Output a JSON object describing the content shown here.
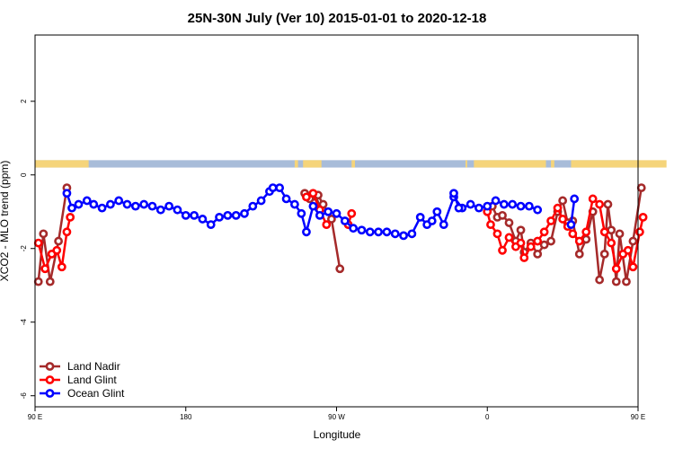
{
  "chart_data": {
    "type": "line",
    "title": "25N-30N July (Ver 10)   2015-01-01 to 2020-12-18",
    "xlabel": "Longitude",
    "ylabel": "XCO2 - MLO trend (ppm)",
    "xlim": [
      90,
      450
    ],
    "ylim": [
      -6.3,
      3.8
    ],
    "x_ticks": [
      {
        "value": 90,
        "label": "90 E"
      },
      {
        "value": 180,
        "label": "180"
      },
      {
        "value": 270,
        "label": "90 W"
      },
      {
        "value": 360,
        "label": "0"
      },
      {
        "value": 450,
        "label": "90 E"
      },
      {
        "value": 540,
        "label": "180"
      }
    ],
    "y_ticks": [
      {
        "value": 2,
        "label": "2"
      },
      {
        "value": 0,
        "label": "0"
      },
      {
        "value": -2,
        "label": "-2"
      },
      {
        "value": -4,
        "label": "-4"
      },
      {
        "value": -6,
        "label": "-6"
      }
    ],
    "land_ocean_strip": {
      "y_range": [
        0.2,
        0.4
      ],
      "land_color": "#f5d47a",
      "ocean_color": "#a8bcd9",
      "land_spans": [
        [
          90,
          122
        ],
        [
          245,
          247
        ],
        [
          250,
          261
        ],
        [
          279,
          281
        ],
        [
          347,
          348
        ],
        [
          352,
          395
        ],
        [
          398,
          400
        ],
        [
          410,
          467
        ]
      ]
    },
    "legend": {
      "position": "bottom-left"
    },
    "series": [
      {
        "name": "Land Nadir",
        "color": "#a52a2a",
        "segments": [
          [
            [
              92,
              -2.9
            ],
            [
              95,
              -1.6
            ],
            [
              99,
              -2.9
            ],
            [
              104,
              -1.8
            ],
            [
              109,
              -0.35
            ]
          ],
          [
            [
              251,
              -0.5
            ],
            [
              254,
              -0.65
            ],
            [
              257,
              -0.75
            ],
            [
              259,
              -0.55
            ],
            [
              262,
              -0.8
            ],
            [
              267,
              -1.2
            ],
            [
              272,
              -2.55
            ]
          ],
          [
            [
              363,
              -0.85
            ],
            [
              366,
              -1.15
            ],
            [
              369,
              -1.1
            ],
            [
              373,
              -1.3
            ],
            [
              377,
              -1.8
            ],
            [
              380,
              -1.5
            ],
            [
              382,
              -2.1
            ],
            [
              386,
              -1.85
            ],
            [
              390,
              -2.15
            ],
            [
              394,
              -1.9
            ],
            [
              398,
              -1.8
            ],
            [
              402,
              -1.0
            ],
            [
              405,
              -0.7
            ],
            [
              408,
              -1.3
            ],
            [
              411,
              -1.25
            ],
            [
              415,
              -2.15
            ],
            [
              419,
              -1.75
            ],
            [
              423,
              -1.0
            ],
            [
              427,
              -2.85
            ],
            [
              430,
              -2.15
            ],
            [
              432,
              -0.8
            ],
            [
              434,
              -1.5
            ],
            [
              437,
              -2.9
            ],
            [
              439,
              -1.6
            ],
            [
              443,
              -2.9
            ],
            [
              447,
              -1.8
            ],
            [
              452,
              -0.35
            ]
          ]
        ]
      },
      {
        "name": "Land Glint",
        "color": "#ff0000",
        "segments": [
          [
            [
              92,
              -1.85
            ],
            [
              96,
              -2.55
            ],
            [
              100,
              -2.15
            ],
            [
              103,
              -2.05
            ],
            [
              106,
              -2.5
            ],
            [
              109,
              -1.55
            ],
            [
              111,
              -1.15
            ]
          ],
          [
            [
              252,
              -0.6
            ],
            [
              256,
              -0.5
            ],
            [
              260,
              -0.95
            ],
            [
              264,
              -1.35
            ]
          ],
          [
            [
              277,
              -1.35
            ],
            [
              279,
              -1.05
            ]
          ],
          [
            [
              360,
              -1.0
            ],
            [
              362,
              -1.35
            ],
            [
              366,
              -1.6
            ],
            [
              369,
              -2.05
            ],
            [
              373,
              -1.7
            ],
            [
              377,
              -1.95
            ],
            [
              380,
              -1.85
            ],
            [
              382,
              -2.25
            ],
            [
              386,
              -1.95
            ],
            [
              390,
              -1.8
            ],
            [
              394,
              -1.55
            ],
            [
              398,
              -1.25
            ],
            [
              402,
              -0.9
            ],
            [
              405,
              -1.2
            ],
            [
              408,
              -1.4
            ],
            [
              411,
              -1.6
            ],
            [
              415,
              -1.8
            ],
            [
              419,
              -1.55
            ],
            [
              423,
              -0.65
            ],
            [
              427,
              -0.8
            ],
            [
              430,
              -1.55
            ],
            [
              434,
              -1.85
            ],
            [
              437,
              -2.55
            ],
            [
              441,
              -2.15
            ],
            [
              444,
              -2.05
            ],
            [
              447,
              -2.5
            ],
            [
              451,
              -1.55
            ],
            [
              453,
              -1.15
            ]
          ]
        ]
      },
      {
        "name": "Ocean Glint",
        "color": "#0000ff",
        "segments": [
          [
            [
              109,
              -0.5
            ],
            [
              112,
              -0.9
            ],
            [
              116,
              -0.8
            ],
            [
              121,
              -0.7
            ],
            [
              125,
              -0.8
            ],
            [
              130,
              -0.9
            ],
            [
              135,
              -0.8
            ],
            [
              140,
              -0.7
            ],
            [
              145,
              -0.8
            ],
            [
              150,
              -0.85
            ],
            [
              155,
              -0.8
            ],
            [
              160,
              -0.85
            ],
            [
              165,
              -0.95
            ],
            [
              170,
              -0.85
            ],
            [
              175,
              -0.95
            ],
            [
              180,
              -1.1
            ],
            [
              185,
              -1.1
            ],
            [
              190,
              -1.2
            ],
            [
              195,
              -1.35
            ],
            [
              200,
              -1.15
            ],
            [
              205,
              -1.1
            ],
            [
              210,
              -1.1
            ],
            [
              215,
              -1.05
            ],
            [
              220,
              -0.85
            ],
            [
              225,
              -0.7
            ],
            [
              230,
              -0.45
            ],
            [
              232,
              -0.35
            ],
            [
              236,
              -0.35
            ],
            [
              240,
              -0.65
            ],
            [
              245,
              -0.8
            ],
            [
              249,
              -1.05
            ],
            [
              252,
              -1.55
            ],
            [
              256,
              -0.85
            ],
            [
              260,
              -1.1
            ],
            [
              265,
              -1.0
            ],
            [
              270,
              -1.05
            ],
            [
              275,
              -1.25
            ],
            [
              280,
              -1.45
            ],
            [
              285,
              -1.5
            ],
            [
              290,
              -1.55
            ],
            [
              295,
              -1.55
            ],
            [
              300,
              -1.55
            ],
            [
              305,
              -1.6
            ],
            [
              310,
              -1.65
            ],
            [
              315,
              -1.6
            ],
            [
              320,
              -1.15
            ],
            [
              324,
              -1.35
            ],
            [
              327,
              -1.25
            ],
            [
              330,
              -1.0
            ],
            [
              334,
              -1.35
            ],
            [
              340,
              -0.6
            ],
            [
              345,
              -0.9
            ],
            [
              350,
              -0.8
            ],
            [
              355,
              -0.9
            ],
            [
              360,
              -0.85
            ],
            [
              365,
              -0.7
            ],
            [
              370,
              -0.8
            ],
            [
              375,
              -0.8
            ],
            [
              380,
              -0.85
            ],
            [
              385,
              -0.85
            ],
            [
              390,
              -0.95
            ]
          ],
          [
            [
              340,
              -0.5
            ],
            [
              343,
              -0.9
            ]
          ],
          [
            [
              410,
              -1.35
            ],
            [
              412,
              -0.65
            ]
          ]
        ]
      }
    ]
  }
}
